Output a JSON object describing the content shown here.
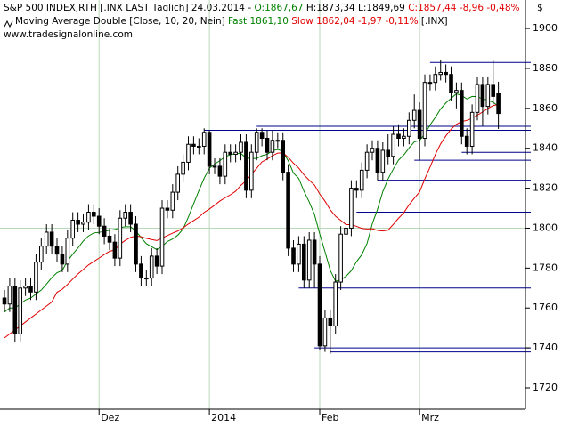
{
  "chart_data": {
    "type": "candlestick",
    "legend_lines": [
      [
        {
          "text": "S&P 500 INDEX,RTH [.INX LAST Täglich] 24.03.2014 - ",
          "color": "#000000"
        },
        {
          "text": "O:1867,67",
          "color": "#008000"
        },
        {
          "text": " H:1873,34 L:1849,69 ",
          "color": "#000000"
        },
        {
          "text": "C:1857,44 -8,96 -0,48%",
          "color": "#e00000"
        }
      ],
      [
        {
          "text": "Moving Average Double [Close, 10, 20, Nein] ",
          "color": "#000000"
        },
        {
          "text": "Fast 1861,10",
          "color": "#008000"
        },
        {
          "text": " Slow 1862,04 -1,97 -0,11%",
          "color": "#e00000"
        },
        {
          "text": " [.INX]",
          "color": "#000000"
        }
      ],
      [
        {
          "text": "www.tradesignalonline.com",
          "color": "#000000"
        }
      ]
    ],
    "currency": "$",
    "ylim": [
      1709.3,
      1914.3
    ],
    "yticks": [
      1720,
      1740,
      1760,
      1780,
      1800,
      1820,
      1840,
      1860,
      1880,
      1900
    ],
    "xlim": [
      -0.85,
      99.15
    ],
    "xticks": [
      {
        "value": 18,
        "label": "Dez"
      },
      {
        "value": 39,
        "label": "2014"
      },
      {
        "value": 60,
        "label": "Feb"
      },
      {
        "value": 79,
        "label": "Mrz"
      }
    ],
    "grid_level": 1800,
    "grid_color": "#b8d8b8",
    "up_color": "#ffffff",
    "down_color": "#000000",
    "candles": [
      [
        1765,
        1769,
        1758,
        1762
      ],
      [
        1762,
        1775,
        1758,
        1771
      ],
      [
        1771,
        1775,
        1743,
        1747
      ],
      [
        1747,
        1774,
        1743,
        1770
      ],
      [
        1770,
        1775,
        1766,
        1771
      ],
      [
        1771,
        1775,
        1764,
        1768
      ],
      [
        1768,
        1787,
        1764,
        1783
      ],
      [
        1783,
        1795,
        1779,
        1791
      ],
      [
        1791,
        1802,
        1787,
        1798
      ],
      [
        1798,
        1802,
        1787,
        1791
      ],
      [
        1791,
        1795,
        1783,
        1787
      ],
      [
        1787,
        1791,
        1778,
        1782
      ],
      [
        1782,
        1799,
        1778,
        1795
      ],
      [
        1795,
        1808,
        1791,
        1804
      ],
      [
        1804,
        1808,
        1798,
        1802
      ],
      [
        1802,
        1807,
        1798,
        1803
      ],
      [
        1803,
        1812,
        1799,
        1808
      ],
      [
        1808,
        1812,
        1802,
        1806
      ],
      [
        1806,
        1810,
        1797,
        1801
      ],
      [
        1801,
        1805,
        1792,
        1796
      ],
      [
        1796,
        1800,
        1789,
        1793
      ],
      [
        1793,
        1797,
        1781,
        1785
      ],
      [
        1785,
        1809,
        1781,
        1805
      ],
      [
        1805,
        1812,
        1801,
        1808
      ],
      [
        1808,
        1812,
        1798,
        1802
      ],
      [
        1802,
        1806,
        1778,
        1782
      ],
      [
        1782,
        1786,
        1771,
        1775
      ],
      [
        1775,
        1779,
        1771,
        1775
      ],
      [
        1775,
        1790,
        1771,
        1786
      ],
      [
        1786,
        1790,
        1777,
        1781
      ],
      [
        1781,
        1814,
        1777,
        1810
      ],
      [
        1810,
        1814,
        1805,
        1809
      ],
      [
        1809,
        1822,
        1805,
        1818
      ],
      [
        1818,
        1831,
        1814,
        1827
      ],
      [
        1827,
        1837,
        1823,
        1833
      ],
      [
        1833,
        1846,
        1829,
        1842
      ],
      [
        1842,
        1846,
        1837,
        1841
      ],
      [
        1841,
        1845,
        1837,
        1841
      ],
      [
        1841,
        1850,
        1837,
        1848
      ],
      [
        1848,
        1849,
        1827,
        1831
      ],
      [
        1831,
        1835,
        1827,
        1831
      ],
      [
        1831,
        1835,
        1822,
        1826
      ],
      [
        1826,
        1842,
        1822,
        1838
      ],
      [
        1838,
        1842,
        1833,
        1837
      ],
      [
        1837,
        1842,
        1833,
        1838
      ],
      [
        1838,
        1847,
        1834,
        1843
      ],
      [
        1843,
        1847,
        1815,
        1819
      ],
      [
        1819,
        1842,
        1815,
        1838
      ],
      [
        1838,
        1850,
        1834,
        1848
      ],
      [
        1848,
        1850,
        1841,
        1845
      ],
      [
        1845,
        1849,
        1834,
        1838
      ],
      [
        1838,
        1849,
        1834,
        1844
      ],
      [
        1844,
        1848,
        1840,
        1844
      ],
      [
        1844,
        1848,
        1824,
        1828
      ],
      [
        1828,
        1832,
        1786,
        1790
      ],
      [
        1790,
        1794,
        1778,
        1782
      ],
      [
        1782,
        1796,
        1778,
        1792
      ],
      [
        1792,
        1796,
        1770,
        1774
      ],
      [
        1774,
        1798,
        1770,
        1794
      ],
      [
        1794,
        1798,
        1770,
        1782
      ],
      [
        1782,
        1786,
        1739,
        1741
      ],
      [
        1741,
        1759,
        1738,
        1755
      ],
      [
        1755,
        1759,
        1737,
        1751
      ],
      [
        1751,
        1777,
        1747,
        1773
      ],
      [
        1773,
        1801,
        1769,
        1797
      ],
      [
        1797,
        1804,
        1793,
        1800
      ],
      [
        1800,
        1824,
        1796,
        1820
      ],
      [
        1820,
        1824,
        1815,
        1819
      ],
      [
        1819,
        1833,
        1815,
        1829
      ],
      [
        1829,
        1842,
        1825,
        1838
      ],
      [
        1838,
        1844,
        1834,
        1840
      ],
      [
        1840,
        1844,
        1824,
        1828
      ],
      [
        1828,
        1843,
        1824,
        1839
      ],
      [
        1839,
        1847,
        1832,
        1836
      ],
      [
        1836,
        1851,
        1832,
        1847
      ],
      [
        1847,
        1852,
        1841,
        1845
      ],
      [
        1845,
        1850,
        1841,
        1846
      ],
      [
        1846,
        1858,
        1842,
        1854
      ],
      [
        1854,
        1867,
        1850,
        1859
      ],
      [
        1859,
        1863,
        1834,
        1845
      ],
      [
        1845,
        1877,
        1841,
        1873
      ],
      [
        1873,
        1877,
        1869,
        1873
      ],
      [
        1873,
        1881,
        1869,
        1877
      ],
      [
        1877,
        1884,
        1874,
        1878
      ],
      [
        1878,
        1882,
        1873,
        1877
      ],
      [
        1877,
        1881,
        1864,
        1868
      ],
      [
        1868,
        1873,
        1860,
        1869
      ],
      [
        1869,
        1873,
        1842,
        1846
      ],
      [
        1846,
        1850,
        1837,
        1841
      ],
      [
        1841,
        1862,
        1837,
        1858
      ],
      [
        1858,
        1876,
        1854,
        1872
      ],
      [
        1872,
        1876,
        1851,
        1861
      ],
      [
        1861,
        1876,
        1857,
        1872
      ],
      [
        1872,
        1884,
        1862,
        1866
      ],
      [
        1867.67,
        1873.34,
        1849.69,
        1857.44
      ]
    ],
    "series": [
      {
        "name": "Fast",
        "color": "#008000",
        "values": [
          1758,
          1760,
          1760,
          1762,
          1764,
          1765,
          1767,
          1769,
          1772,
          1775.2,
          1777.7,
          1778.8,
          1783.6,
          1787.0,
          1790.1,
          1793.6,
          1796.1,
          1797.6,
          1797.9,
          1798.4,
          1799.0,
          1799.3,
          1800.3,
          1800.7,
          1800.7,
          1798.6,
          1795.3,
          1792.2,
          1790.7,
          1789.2,
          1790.9,
          1793.3,
          1794.6,
          1796.5,
          1799.6,
          1805.6,
          1812.2,
          1818.8,
          1825.0,
          1830.0,
          1832.1,
          1833.8,
          1835.8,
          1836.8,
          1837.3,
          1837.4,
          1835.2,
          1834.9,
          1834.9,
          1836.3,
          1837.0,
          1838.8,
          1839.4,
          1838.5,
          1833.7,
          1827.6,
          1824.9,
          1818.5,
          1813.1,
          1806.8,
          1797.1,
          1788.2,
          1778.9,
          1773.4,
          1774.1,
          1775.9,
          1778.7,
          1783.2,
          1786.7,
          1792.3,
          1802.2,
          1809.5,
          1818.3,
          1824.6,
          1829.6,
          1834.1,
          1836.7,
          1840.2,
          1843.2,
          1843.9,
          1847.2,
          1851.7,
          1855.5,
          1859.7,
          1862.7,
          1865.0,
          1867.3,
          1866.5,
          1864.7,
          1866.0,
          1865.9,
          1864.7,
          1864.2,
          1863.0,
          1861.1
        ]
      },
      {
        "name": "Slow",
        "color": "#e00000",
        "values": [
          1745,
          1747,
          1749,
          1751,
          1753,
          1755,
          1757,
          1759,
          1761,
          1763,
          1767.9,
          1769.4,
          1771.8,
          1774.5,
          1777.1,
          1779.3,
          1781.6,
          1783.3,
          1785.0,
          1786.8,
          1788.4,
          1789.1,
          1792.0,
          1793.9,
          1795.4,
          1796.1,
          1795.7,
          1794.9,
          1794.3,
          1793.8,
          1795.0,
          1796.3,
          1797.5,
          1798.6,
          1800.2,
          1802.1,
          1803.8,
          1805.5,
          1807.9,
          1809.6,
          1811.5,
          1813.6,
          1815.2,
          1816.7,
          1818.5,
          1821.5,
          1823.7,
          1826.9,
          1830.0,
          1833.2,
          1834.6,
          1836.3,
          1837.6,
          1837.7,
          1835.5,
          1832.5,
          1830.1,
          1826.7,
          1824.0,
          1821.6,
          1817.1,
          1813.5,
          1809.2,
          1806.0,
          1803.9,
          1801.8,
          1801.8,
          1800.9,
          1799.9,
          1799.6,
          1799.7,
          1798.9,
          1798.6,
          1799.0,
          1801.9,
          1805.0,
          1807.7,
          1811.7,
          1815.0,
          1818.1,
          1824.7,
          1830.6,
          1836.9,
          1842.2,
          1846.2,
          1849.6,
          1852.0,
          1853.4,
          1854.0,
          1855.0,
          1856.6,
          1858.2,
          1859.9,
          1861.4,
          1862.0
        ]
      }
    ],
    "levels_color": "#00008b",
    "levels": [
      {
        "value": 1883,
        "start": 81
      },
      {
        "value": 1851,
        "start": 48
      },
      {
        "value": 1849,
        "start": 38
      },
      {
        "value": 1838,
        "start": 87
      },
      {
        "value": 1834,
        "start": 78
      },
      {
        "value": 1824,
        "start": 71
      },
      {
        "value": 1808,
        "start": 67
      },
      {
        "value": 1770,
        "start": 56
      },
      {
        "value": 1740,
        "start": 59
      },
      {
        "value": 1738,
        "start": 62
      }
    ]
  }
}
